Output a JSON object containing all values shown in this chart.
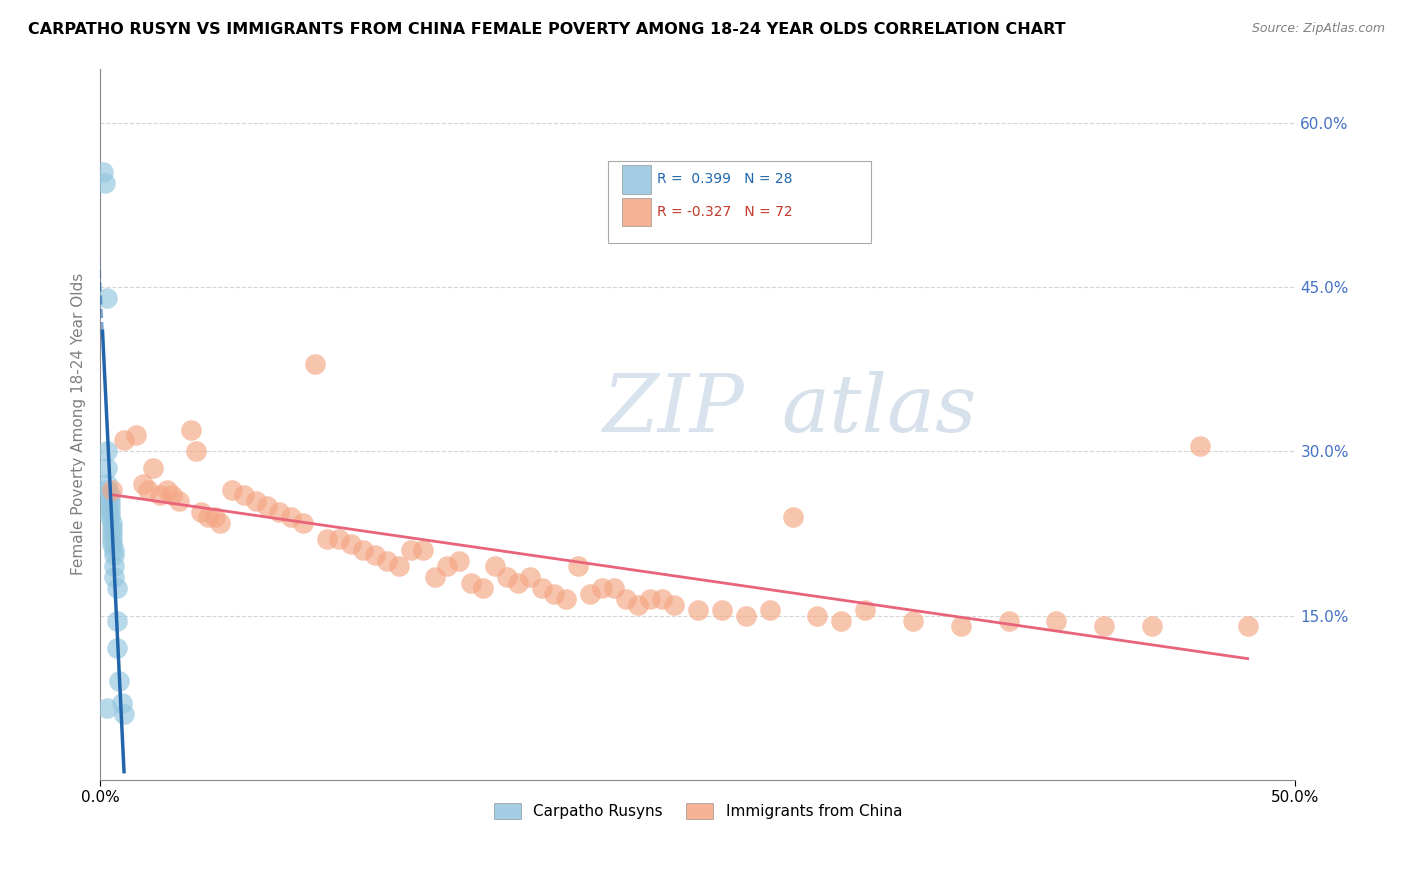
{
  "title": "CARPATHO RUSYN VS IMMIGRANTS FROM CHINA FEMALE POVERTY AMONG 18-24 YEAR OLDS CORRELATION CHART",
  "source": "Source: ZipAtlas.com",
  "ylabel": "Female Poverty Among 18-24 Year Olds",
  "xlim": [
    0.0,
    0.5
  ],
  "ylim": [
    0.0,
    0.65
  ],
  "yticks": [
    0.0,
    0.15,
    0.3,
    0.45,
    0.6
  ],
  "ytick_labels": [
    "",
    "15.0%",
    "30.0%",
    "45.0%",
    "60.0%"
  ],
  "blue_color": "#92c5de",
  "pink_color": "#f4a582",
  "blue_line_color": "#2166ac",
  "pink_line_color": "#e8647a",
  "watermark_zip": "ZIP",
  "watermark_atlas": "atlas",
  "blue_scatter": [
    [
      0.001,
      0.555
    ],
    [
      0.002,
      0.545
    ],
    [
      0.003,
      0.44
    ],
    [
      0.003,
      0.3
    ],
    [
      0.003,
      0.285
    ],
    [
      0.003,
      0.27
    ],
    [
      0.003,
      0.265
    ],
    [
      0.004,
      0.26
    ],
    [
      0.004,
      0.255
    ],
    [
      0.004,
      0.25
    ],
    [
      0.004,
      0.245
    ],
    [
      0.004,
      0.24
    ],
    [
      0.005,
      0.235
    ],
    [
      0.005,
      0.23
    ],
    [
      0.005,
      0.225
    ],
    [
      0.005,
      0.22
    ],
    [
      0.005,
      0.215
    ],
    [
      0.006,
      0.21
    ],
    [
      0.006,
      0.205
    ],
    [
      0.006,
      0.195
    ],
    [
      0.006,
      0.185
    ],
    [
      0.007,
      0.175
    ],
    [
      0.007,
      0.145
    ],
    [
      0.007,
      0.12
    ],
    [
      0.008,
      0.09
    ],
    [
      0.009,
      0.07
    ],
    [
      0.01,
      0.06
    ],
    [
      0.003,
      0.065
    ]
  ],
  "pink_scatter": [
    [
      0.005,
      0.265
    ],
    [
      0.01,
      0.31
    ],
    [
      0.015,
      0.315
    ],
    [
      0.018,
      0.27
    ],
    [
      0.02,
      0.265
    ],
    [
      0.022,
      0.285
    ],
    [
      0.025,
      0.26
    ],
    [
      0.028,
      0.265
    ],
    [
      0.03,
      0.26
    ],
    [
      0.033,
      0.255
    ],
    [
      0.038,
      0.32
    ],
    [
      0.04,
      0.3
    ],
    [
      0.042,
      0.245
    ],
    [
      0.045,
      0.24
    ],
    [
      0.048,
      0.24
    ],
    [
      0.05,
      0.235
    ],
    [
      0.055,
      0.265
    ],
    [
      0.06,
      0.26
    ],
    [
      0.065,
      0.255
    ],
    [
      0.07,
      0.25
    ],
    [
      0.075,
      0.245
    ],
    [
      0.08,
      0.24
    ],
    [
      0.085,
      0.235
    ],
    [
      0.09,
      0.38
    ],
    [
      0.095,
      0.22
    ],
    [
      0.1,
      0.22
    ],
    [
      0.105,
      0.215
    ],
    [
      0.11,
      0.21
    ],
    [
      0.115,
      0.205
    ],
    [
      0.12,
      0.2
    ],
    [
      0.125,
      0.195
    ],
    [
      0.13,
      0.21
    ],
    [
      0.135,
      0.21
    ],
    [
      0.14,
      0.185
    ],
    [
      0.145,
      0.195
    ],
    [
      0.15,
      0.2
    ],
    [
      0.155,
      0.18
    ],
    [
      0.16,
      0.175
    ],
    [
      0.165,
      0.195
    ],
    [
      0.17,
      0.185
    ],
    [
      0.175,
      0.18
    ],
    [
      0.18,
      0.185
    ],
    [
      0.185,
      0.175
    ],
    [
      0.19,
      0.17
    ],
    [
      0.195,
      0.165
    ],
    [
      0.2,
      0.195
    ],
    [
      0.205,
      0.17
    ],
    [
      0.21,
      0.175
    ],
    [
      0.215,
      0.175
    ],
    [
      0.22,
      0.165
    ],
    [
      0.225,
      0.16
    ],
    [
      0.23,
      0.165
    ],
    [
      0.235,
      0.165
    ],
    [
      0.24,
      0.16
    ],
    [
      0.25,
      0.155
    ],
    [
      0.26,
      0.155
    ],
    [
      0.27,
      0.15
    ],
    [
      0.28,
      0.155
    ],
    [
      0.29,
      0.24
    ],
    [
      0.3,
      0.15
    ],
    [
      0.31,
      0.145
    ],
    [
      0.32,
      0.155
    ],
    [
      0.34,
      0.145
    ],
    [
      0.36,
      0.14
    ],
    [
      0.38,
      0.145
    ],
    [
      0.4,
      0.145
    ],
    [
      0.42,
      0.14
    ],
    [
      0.44,
      0.14
    ],
    [
      0.46,
      0.305
    ],
    [
      0.48,
      0.14
    ]
  ]
}
